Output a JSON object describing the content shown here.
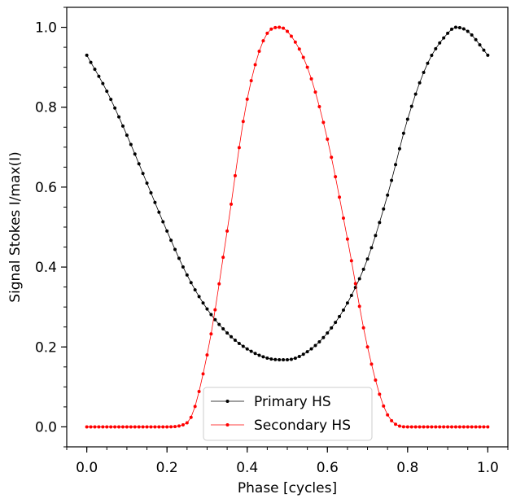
{
  "chart_data": {
    "type": "line",
    "title": "",
    "xlabel": "Phase [cycles]",
    "ylabel": "Signal Stokes I/max(I)",
    "xlim": [
      -0.05,
      1.05
    ],
    "ylim": [
      -0.05,
      1.05
    ],
    "xticks": [
      0.0,
      0.2,
      0.4,
      0.6,
      0.8,
      1.0
    ],
    "yticks": [
      0.0,
      0.2,
      0.4,
      0.6,
      0.8,
      1.0
    ],
    "xtick_labels": [
      "0.0",
      "0.2",
      "0.4",
      "0.6",
      "0.8",
      "1.0"
    ],
    "ytick_labels": [
      "0.0",
      "0.2",
      "0.4",
      "0.6",
      "0.8",
      "1.0"
    ],
    "grid": false,
    "legend_position": "bottom-center",
    "x": [
      0.0,
      0.05,
      0.1,
      0.15,
      0.2,
      0.25,
      0.3,
      0.35,
      0.4,
      0.45,
      0.48,
      0.5,
      0.55,
      0.6,
      0.65,
      0.7,
      0.75,
      0.8,
      0.85,
      0.9,
      0.92,
      0.95,
      1.0
    ],
    "series": [
      {
        "name": "Primary HS",
        "color": "#000000",
        "values": [
          0.93,
          0.84,
          0.73,
          0.61,
          0.49,
          0.38,
          0.295,
          0.235,
          0.195,
          0.172,
          0.168,
          0.168,
          0.188,
          0.235,
          0.31,
          0.42,
          0.58,
          0.77,
          0.91,
          0.985,
          1.0,
          0.99,
          0.93
        ]
      },
      {
        "name": "Secondary HS",
        "color": "#ff0000",
        "values": [
          0.0,
          0.0,
          0.0,
          0.0,
          0.0,
          0.01,
          0.18,
          0.49,
          0.82,
          0.985,
          1.0,
          0.99,
          0.9,
          0.72,
          0.47,
          0.2,
          0.03,
          0.0,
          0.0,
          0.0,
          0.0,
          0.0,
          0.0
        ]
      }
    ]
  }
}
